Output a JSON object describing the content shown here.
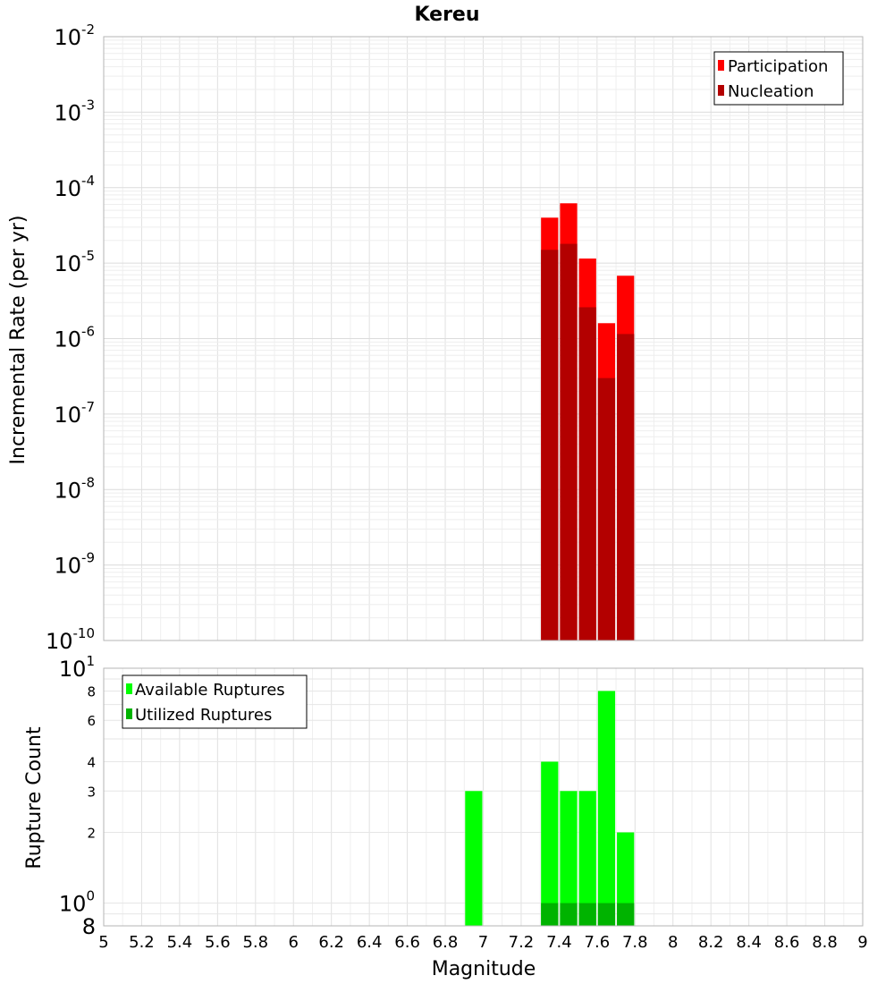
{
  "chart_data": [
    {
      "type": "bar",
      "title": "Kereu",
      "ylabel": "Incremental Rate (per yr)",
      "yscale": "log",
      "ylim": [
        1e-10,
        0.01
      ],
      "xlim": [
        5,
        9
      ],
      "grid": true,
      "legend_position": "top-right",
      "y_tick_labels": [
        {
          "base": "10",
          "exp": "-10",
          "value": 1e-10
        },
        {
          "base": "10",
          "exp": "-9",
          "value": 1e-09
        },
        {
          "base": "10",
          "exp": "-8",
          "value": 1e-08
        },
        {
          "base": "10",
          "exp": "-7",
          "value": 1e-07
        },
        {
          "base": "10",
          "exp": "-6",
          "value": 1e-06
        },
        {
          "base": "10",
          "exp": "-5",
          "value": 1e-05
        },
        {
          "base": "10",
          "exp": "-4",
          "value": 0.0001
        },
        {
          "base": "10",
          "exp": "-3",
          "value": 0.001
        },
        {
          "base": "10",
          "exp": "-2",
          "value": 0.01
        }
      ],
      "series": [
        {
          "name": "Participation",
          "color": "#ff0000",
          "points": [
            {
              "x": 7.35,
              "y": 4e-05
            },
            {
              "x": 7.45,
              "y": 6.2e-05
            },
            {
              "x": 7.55,
              "y": 1.15e-05
            },
            {
              "x": 7.65,
              "y": 1.6e-06
            },
            {
              "x": 7.75,
              "y": 6.8e-06
            }
          ]
        },
        {
          "name": "Nucleation",
          "color": "#b30000",
          "points": [
            {
              "x": 7.35,
              "y": 1.5e-05
            },
            {
              "x": 7.45,
              "y": 1.8e-05
            },
            {
              "x": 7.55,
              "y": 2.6e-06
            },
            {
              "x": 7.65,
              "y": 3e-07
            },
            {
              "x": 7.75,
              "y": 1.15e-06
            }
          ]
        }
      ]
    },
    {
      "type": "bar",
      "xlabel": "Magnitude",
      "ylabel": "Rupture Count",
      "yscale": "log",
      "ylim": [
        0.8,
        10
      ],
      "xlim": [
        5,
        9
      ],
      "grid": true,
      "legend_position": "top-left",
      "x_tick_labels": [
        "5",
        "5.2",
        "5.4",
        "5.6",
        "5.8",
        "6",
        "6.2",
        "6.4",
        "6.6",
        "6.8",
        "7",
        "7.2",
        "7.4",
        "7.6",
        "7.8",
        "8",
        "8.2",
        "8.4",
        "8.6",
        "8.8",
        "9"
      ],
      "y_major_ticks": [
        {
          "base": "10",
          "exp": "0",
          "value": 1
        },
        {
          "base": "10",
          "exp": "1",
          "value": 10
        }
      ],
      "y_minor_ticks": [
        {
          "label": "8",
          "value": 0.8,
          "big": true
        },
        {
          "label": "2",
          "value": 2
        },
        {
          "label": "3",
          "value": 3
        },
        {
          "label": "4",
          "value": 4
        },
        {
          "label": "6",
          "value": 6
        },
        {
          "label": "8",
          "value": 8
        }
      ],
      "series": [
        {
          "name": "Available Ruptures",
          "color": "#00ff00",
          "points": [
            {
              "x": 6.95,
              "y": 3
            },
            {
              "x": 7.35,
              "y": 4
            },
            {
              "x": 7.45,
              "y": 3
            },
            {
              "x": 7.55,
              "y": 3
            },
            {
              "x": 7.65,
              "y": 8
            },
            {
              "x": 7.75,
              "y": 2
            }
          ]
        },
        {
          "name": "Utilized Ruptures",
          "color": "#00b300",
          "points": [
            {
              "x": 7.35,
              "y": 1
            },
            {
              "x": 7.45,
              "y": 1
            },
            {
              "x": 7.55,
              "y": 1
            },
            {
              "x": 7.65,
              "y": 1
            },
            {
              "x": 7.75,
              "y": 1
            }
          ]
        }
      ]
    }
  ]
}
